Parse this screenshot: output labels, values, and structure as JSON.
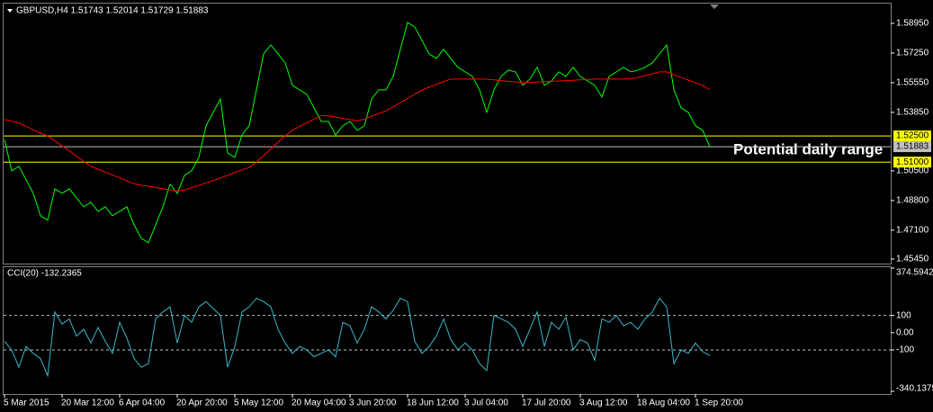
{
  "chart_data": [
    {
      "type": "line",
      "title": "GBPUSD,H4  1.51743 1.52014 1.51729 1.51883",
      "annotation": "Potential daily range",
      "categories": [
        "5 Mar 2015",
        null,
        null,
        null,
        null,
        null,
        null,
        null,
        "20 Mar 12:00",
        null,
        null,
        null,
        null,
        null,
        null,
        null,
        "6 Apr 04:00",
        null,
        null,
        null,
        null,
        null,
        null,
        null,
        "20 Apr 20:00",
        null,
        null,
        null,
        null,
        null,
        null,
        null,
        "5 May 12:00",
        null,
        null,
        null,
        null,
        null,
        null,
        null,
        "20 May 04:00",
        null,
        null,
        null,
        null,
        null,
        null,
        null,
        "3 Jun 20:00",
        null,
        null,
        null,
        null,
        null,
        null,
        null,
        "18 Jun 12:00",
        null,
        null,
        null,
        null,
        null,
        null,
        null,
        "3 Jul 04:00",
        null,
        null,
        null,
        null,
        null,
        null,
        null,
        "17 Jul 20:00",
        null,
        null,
        null,
        null,
        null,
        null,
        null,
        "3 Aug 12:00",
        null,
        null,
        null,
        null,
        null,
        null,
        null,
        "18 Aug 04:00",
        null,
        null,
        null,
        null,
        null,
        null,
        null,
        "1 Sep 20:00",
        null,
        null
      ],
      "series": [
        {
          "color": "#00ff00",
          "values": [
            1.523,
            1.505,
            1.5076,
            1.4999,
            1.4921,
            1.4793,
            1.4767,
            1.4947,
            1.4921,
            1.4947,
            1.4896,
            1.4844,
            1.487,
            1.4818,
            1.4844,
            1.4793,
            1.4818,
            1.4844,
            1.4741,
            1.4664,
            1.4638,
            1.4741,
            1.4844,
            1.4973,
            1.4921,
            1.5024,
            1.505,
            1.5127,
            1.5308,
            1.5385,
            1.5462,
            1.5153,
            1.5127,
            1.5256,
            1.5308,
            1.5514,
            1.572,
            1.5771,
            1.572,
            1.5668,
            1.554,
            1.5514,
            1.5488,
            1.5411,
            1.5333,
            1.5333,
            1.5256,
            1.5308,
            1.5333,
            1.5282,
            1.5308,
            1.5462,
            1.5514,
            1.5514,
            1.5591,
            1.5746,
            1.59,
            1.5874,
            1.5797,
            1.572,
            1.5694,
            1.5746,
            1.5694,
            1.5643,
            1.5617,
            1.5591,
            1.5514,
            1.5385,
            1.5514,
            1.5591,
            1.5627,
            1.5617,
            1.554,
            1.5576,
            1.5643,
            1.554,
            1.5565,
            1.5617,
            1.5591,
            1.5643,
            1.5591,
            1.5565,
            1.554,
            1.5473,
            1.5591,
            1.5617,
            1.5643,
            1.5617,
            1.5627,
            1.5643,
            1.5668,
            1.572,
            1.5771,
            1.5514,
            1.5411,
            1.5385,
            1.5308,
            1.5282,
            1.5188
          ]
        },
        {
          "color": "#ff0000",
          "values": [
            1.5344,
            1.5334,
            1.5324,
            1.5305,
            1.5285,
            1.5266,
            1.525,
            1.5222,
            1.5193,
            1.5165,
            1.5135,
            1.5105,
            1.5076,
            1.506,
            1.5043,
            1.5026,
            1.501,
            1.4993,
            1.4976,
            1.4968,
            1.4962,
            1.4955,
            1.4948,
            1.4941,
            1.4934,
            1.494,
            1.4954,
            1.4967,
            1.4981,
            1.4994,
            1.5009,
            1.5024,
            1.504,
            1.5055,
            1.507,
            1.51,
            1.5138,
            1.5176,
            1.5214,
            1.5252,
            1.5283,
            1.5304,
            1.5325,
            1.5346,
            1.5366,
            1.5365,
            1.5358,
            1.5351,
            1.5344,
            1.5337,
            1.5346,
            1.5362,
            1.5378,
            1.5393,
            1.5417,
            1.5441,
            1.5465,
            1.5489,
            1.5512,
            1.553,
            1.5546,
            1.5561,
            1.5576,
            1.5576,
            1.5576,
            1.5576,
            1.5576,
            1.5575,
            1.5571,
            1.5567,
            1.5563,
            1.5559,
            1.5555,
            1.5557,
            1.5559,
            1.5561,
            1.5563,
            1.5565,
            1.5567,
            1.5569,
            1.5571,
            1.5573,
            1.5576,
            1.5576,
            1.5576,
            1.5576,
            1.5576,
            1.5577,
            1.5585,
            1.5596,
            1.5606,
            1.5617,
            1.5617,
            1.56,
            1.5585,
            1.557,
            1.5555,
            1.554,
            1.5514
          ]
        }
      ],
      "ylim": [
        1.4524,
        1.6008
      ],
      "yticks": [
        {
          "value": 1.5895,
          "label": "1.58950"
        },
        {
          "value": 1.5725,
          "label": "1.57250"
        },
        {
          "value": 1.5555,
          "label": "1.55550"
        },
        {
          "value": 1.5385,
          "label": "1.53850"
        },
        {
          "value": 1.505,
          "label": "1.50500"
        },
        {
          "value": 1.488,
          "label": "1.48800"
        },
        {
          "value": 1.471,
          "label": "1.47100"
        },
        {
          "value": 1.4545,
          "label": "1.45450"
        }
      ],
      "hlines": [
        {
          "value": 1.525,
          "label": "1.52500",
          "color": "#ffff00"
        },
        {
          "value": 1.51883,
          "label": "1.51883",
          "color": "#c0c0c0"
        },
        {
          "value": 1.51,
          "label": "1.51000",
          "color": "#ffff00"
        }
      ]
    },
    {
      "type": "line",
      "title": "CCI(20) -132.2365",
      "series": [
        {
          "color": "#3cb8c8",
          "values": [
            -50,
            -100,
            -200,
            -80,
            -120,
            -150,
            -250,
            120,
            50,
            80,
            -20,
            20,
            -60,
            30,
            -50,
            -120,
            60,
            -30,
            -150,
            -200,
            -180,
            80,
            120,
            150,
            -60,
            100,
            60,
            150,
            180,
            140,
            100,
            -200,
            -80,
            120,
            150,
            200,
            180,
            150,
            20,
            -60,
            -120,
            -80,
            -100,
            -140,
            -120,
            -100,
            -140,
            60,
            40,
            -60,
            20,
            150,
            120,
            80,
            130,
            200,
            180,
            -50,
            -120,
            -80,
            -20,
            80,
            -40,
            -100,
            -60,
            -100,
            -180,
            -220,
            100,
            80,
            60,
            20,
            -80,
            20,
            120,
            -80,
            60,
            20,
            90,
            -100,
            -40,
            -60,
            -160,
            80,
            60,
            100,
            40,
            60,
            20,
            80,
            120,
            200,
            150,
            -180,
            -100,
            -120,
            -60,
            -110,
            -132.2365
          ]
        }
      ],
      "ylim": [
        -340.1375,
        374.5942
      ],
      "yticks": [
        374.5942,
        100,
        {
          "value": 0,
          "label": "0.00"
        },
        -100,
        -340.1375
      ],
      "levels": [
        100,
        -100
      ]
    }
  ]
}
